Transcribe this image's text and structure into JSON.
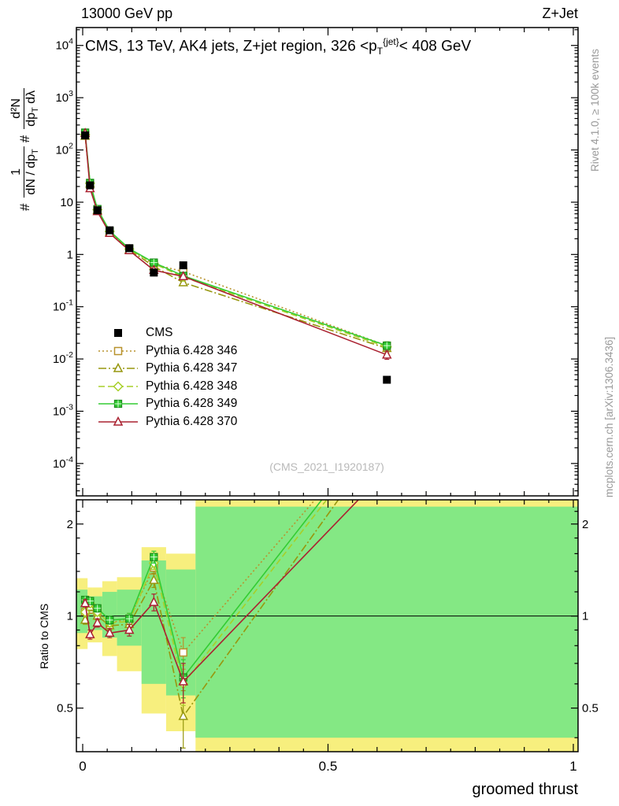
{
  "header": {
    "left": "13000 GeV pp",
    "right": "Z+Jet"
  },
  "title": {
    "a": "CMS, 13 TeV, AK4 jets, Z+jet region, 326 <p",
    "sub": "T",
    "sup": "{jet}",
    "b": "< 408 GeV"
  },
  "side_notes": {
    "rivet": "Rivet 4.1.0, ≥ 100k events",
    "mcplots": "mcplots.cern.ch [arXiv:1306.3436]"
  },
  "watermark": "(CMS_2021_I1920187)",
  "axes": {
    "x_label": "groomed thrust",
    "ratio_label": "Ratio to CMS",
    "x_tick_labels": [
      "0",
      "0.5",
      "1"
    ],
    "ratio_tick_labels": [
      "0.5",
      "1",
      "2"
    ]
  },
  "ylabel": {
    "hash1": "#",
    "f1num": "1",
    "f1den": "dN / dp",
    "f1sub": "T",
    "hash2": "#",
    "f2num": "d²N",
    "f2den_a": "dp",
    "f2sub": "T",
    "f2den_b": " dλ"
  },
  "legend": {
    "entries": [
      {
        "label": "CMS"
      },
      {
        "label": "Pythia 6.428 346"
      },
      {
        "label": "Pythia 6.428 347"
      },
      {
        "label": "Pythia 6.428 348"
      },
      {
        "label": "Pythia 6.428 349"
      },
      {
        "label": "Pythia 6.428 370"
      }
    ]
  },
  "colors": {
    "yellow_band": "#f7ef7e",
    "green_band": "#84e884",
    "cms": "#000000",
    "gray_text": "#9a9a9a"
  },
  "chart_data": {
    "type": "line",
    "title": "CMS, 13 TeV, AK4 jets, Z+jet region, 326 < pT{jet} < 408 GeV",
    "xlabel": "groomed thrust",
    "ylabel": "# 1/(dN/dpT) d2N/(dpT dlambda)",
    "x_lim": [
      -0.0128,
      1.0096
    ],
    "main_ylim": [
      2.4e-05,
      22000.0
    ],
    "ratio_ylim": [
      0.36,
      2.4
    ],
    "y_scale": "log",
    "ratio_scale": "log",
    "y_tick_exponents": [
      4,
      3,
      2,
      1,
      0,
      -1,
      -2,
      -3,
      -4
    ],
    "x_ticks": [
      0,
      0.5,
      1
    ],
    "ratio_ticks": [
      0.5,
      1,
      2
    ],
    "x": [
      0.005,
      0.015,
      0.03,
      0.055,
      0.095,
      0.145,
      0.205,
      0.62
    ],
    "bins": [
      [
        0,
        0.01
      ],
      [
        0.01,
        0.02
      ],
      [
        0.02,
        0.04
      ],
      [
        0.04,
        0.07
      ],
      [
        0.07,
        0.12
      ],
      [
        0.12,
        0.17
      ],
      [
        0.17,
        0.23
      ],
      [
        0.23,
        1.0
      ]
    ],
    "mc_rel_err": [
      0.03,
      0.02,
      0.025,
      0.025,
      0.03,
      0.05,
      0.08,
      0.18
    ],
    "cms": {
      "name": "CMS",
      "color": "#000000",
      "marker": "square-filled",
      "values": [
        190,
        21,
        7.0,
        2.9,
        1.32,
        0.45,
        0.62,
        0.004
      ]
    },
    "series": [
      {
        "name": "Pythia 6.428 346",
        "color": "#b8922d",
        "dash": "2,3",
        "marker": "square-open",
        "values": [
          196,
          22.0,
          7.2,
          2.76,
          1.29,
          0.65,
          0.47,
          0.018
        ],
        "ratio": [
          1.03,
          1.05,
          1.03,
          0.95,
          0.98,
          1.44,
          0.76,
          4.5
        ],
        "ratio_err": [
          0.03,
          0.03,
          0.03,
          0.03,
          0.04,
          0.07,
          0.09,
          0
        ]
      },
      {
        "name": "Pythia 6.428 347",
        "color": "#97970f",
        "dash": "10,3,2,3",
        "marker": "triangle-open",
        "values": [
          184,
          22.5,
          7.0,
          2.7,
          1.24,
          0.59,
          0.29,
          0.016
        ],
        "ratio": [
          0.97,
          1.07,
          1.0,
          0.93,
          0.94,
          1.31,
          0.47,
          4.0
        ],
        "ratio_err": [
          0.03,
          0.03,
          0.03,
          0.03,
          0.04,
          0.07,
          0.1,
          0
        ]
      },
      {
        "name": "Pythia 6.428 348",
        "color": "#a7cf28",
        "dash": "8,4",
        "marker": "diamond-open",
        "values": [
          196,
          23.1,
          7.2,
          2.76,
          1.27,
          0.67,
          0.37,
          0.017
        ],
        "ratio": [
          1.03,
          1.1,
          1.03,
          0.95,
          0.96,
          1.49,
          0.6,
          4.3
        ],
        "ratio_err": [
          0.03,
          0.03,
          0.03,
          0.03,
          0.04,
          0.07,
          0.09,
          0
        ]
      },
      {
        "name": "Pythia 6.428 349",
        "color": "#33cc33",
        "dash": "",
        "marker": "square-plus",
        "values": [
          215,
          23.5,
          7.4,
          2.81,
          1.29,
          0.7,
          0.39,
          0.018
        ],
        "ratio": [
          1.13,
          1.12,
          1.06,
          0.97,
          0.98,
          1.56,
          0.63,
          4.5
        ],
        "ratio_err": [
          0.03,
          0.03,
          0.03,
          0.03,
          0.04,
          0.07,
          0.09,
          0
        ]
      },
      {
        "name": "Pythia 6.428 370",
        "color": "#aa2231",
        "dash": "",
        "marker": "triangle-open",
        "values": [
          209,
          18.3,
          6.65,
          2.55,
          1.19,
          0.5,
          0.38,
          0.012
        ],
        "ratio": [
          1.1,
          0.87,
          0.95,
          0.88,
          0.9,
          1.11,
          0.61,
          3.0
        ],
        "ratio_err": [
          0.03,
          0.03,
          0.03,
          0.03,
          0.04,
          0.07,
          0.09,
          0
        ]
      }
    ],
    "ratio_bands": [
      {
        "bin": [
          0,
          0.01
        ],
        "yellow": [
          0.78,
          1.33
        ],
        "green": [
          0.88,
          1.22
        ]
      },
      {
        "bin": [
          0.01,
          0.02
        ],
        "yellow": [
          0.82,
          1.24
        ],
        "green": [
          0.9,
          1.16
        ]
      },
      {
        "bin": [
          0.02,
          0.04
        ],
        "yellow": [
          0.82,
          1.24
        ],
        "green": [
          0.9,
          1.16
        ]
      },
      {
        "bin": [
          0.04,
          0.07
        ],
        "yellow": [
          0.74,
          1.3
        ],
        "green": [
          0.85,
          1.2
        ]
      },
      {
        "bin": [
          0.07,
          0.12
        ],
        "yellow": [
          0.66,
          1.34
        ],
        "green": [
          0.8,
          1.22
        ]
      },
      {
        "bin": [
          0.12,
          0.17
        ],
        "yellow": [
          0.48,
          1.68
        ],
        "green": [
          0.6,
          1.52
        ]
      },
      {
        "bin": [
          0.17,
          0.23
        ],
        "yellow": [
          0.42,
          1.6
        ],
        "green": [
          0.55,
          1.42
        ]
      },
      {
        "bin": [
          0.23,
          1.0
        ],
        "yellow": [
          0.3,
          2.6
        ],
        "green": [
          0.4,
          2.28
        ]
      }
    ]
  }
}
